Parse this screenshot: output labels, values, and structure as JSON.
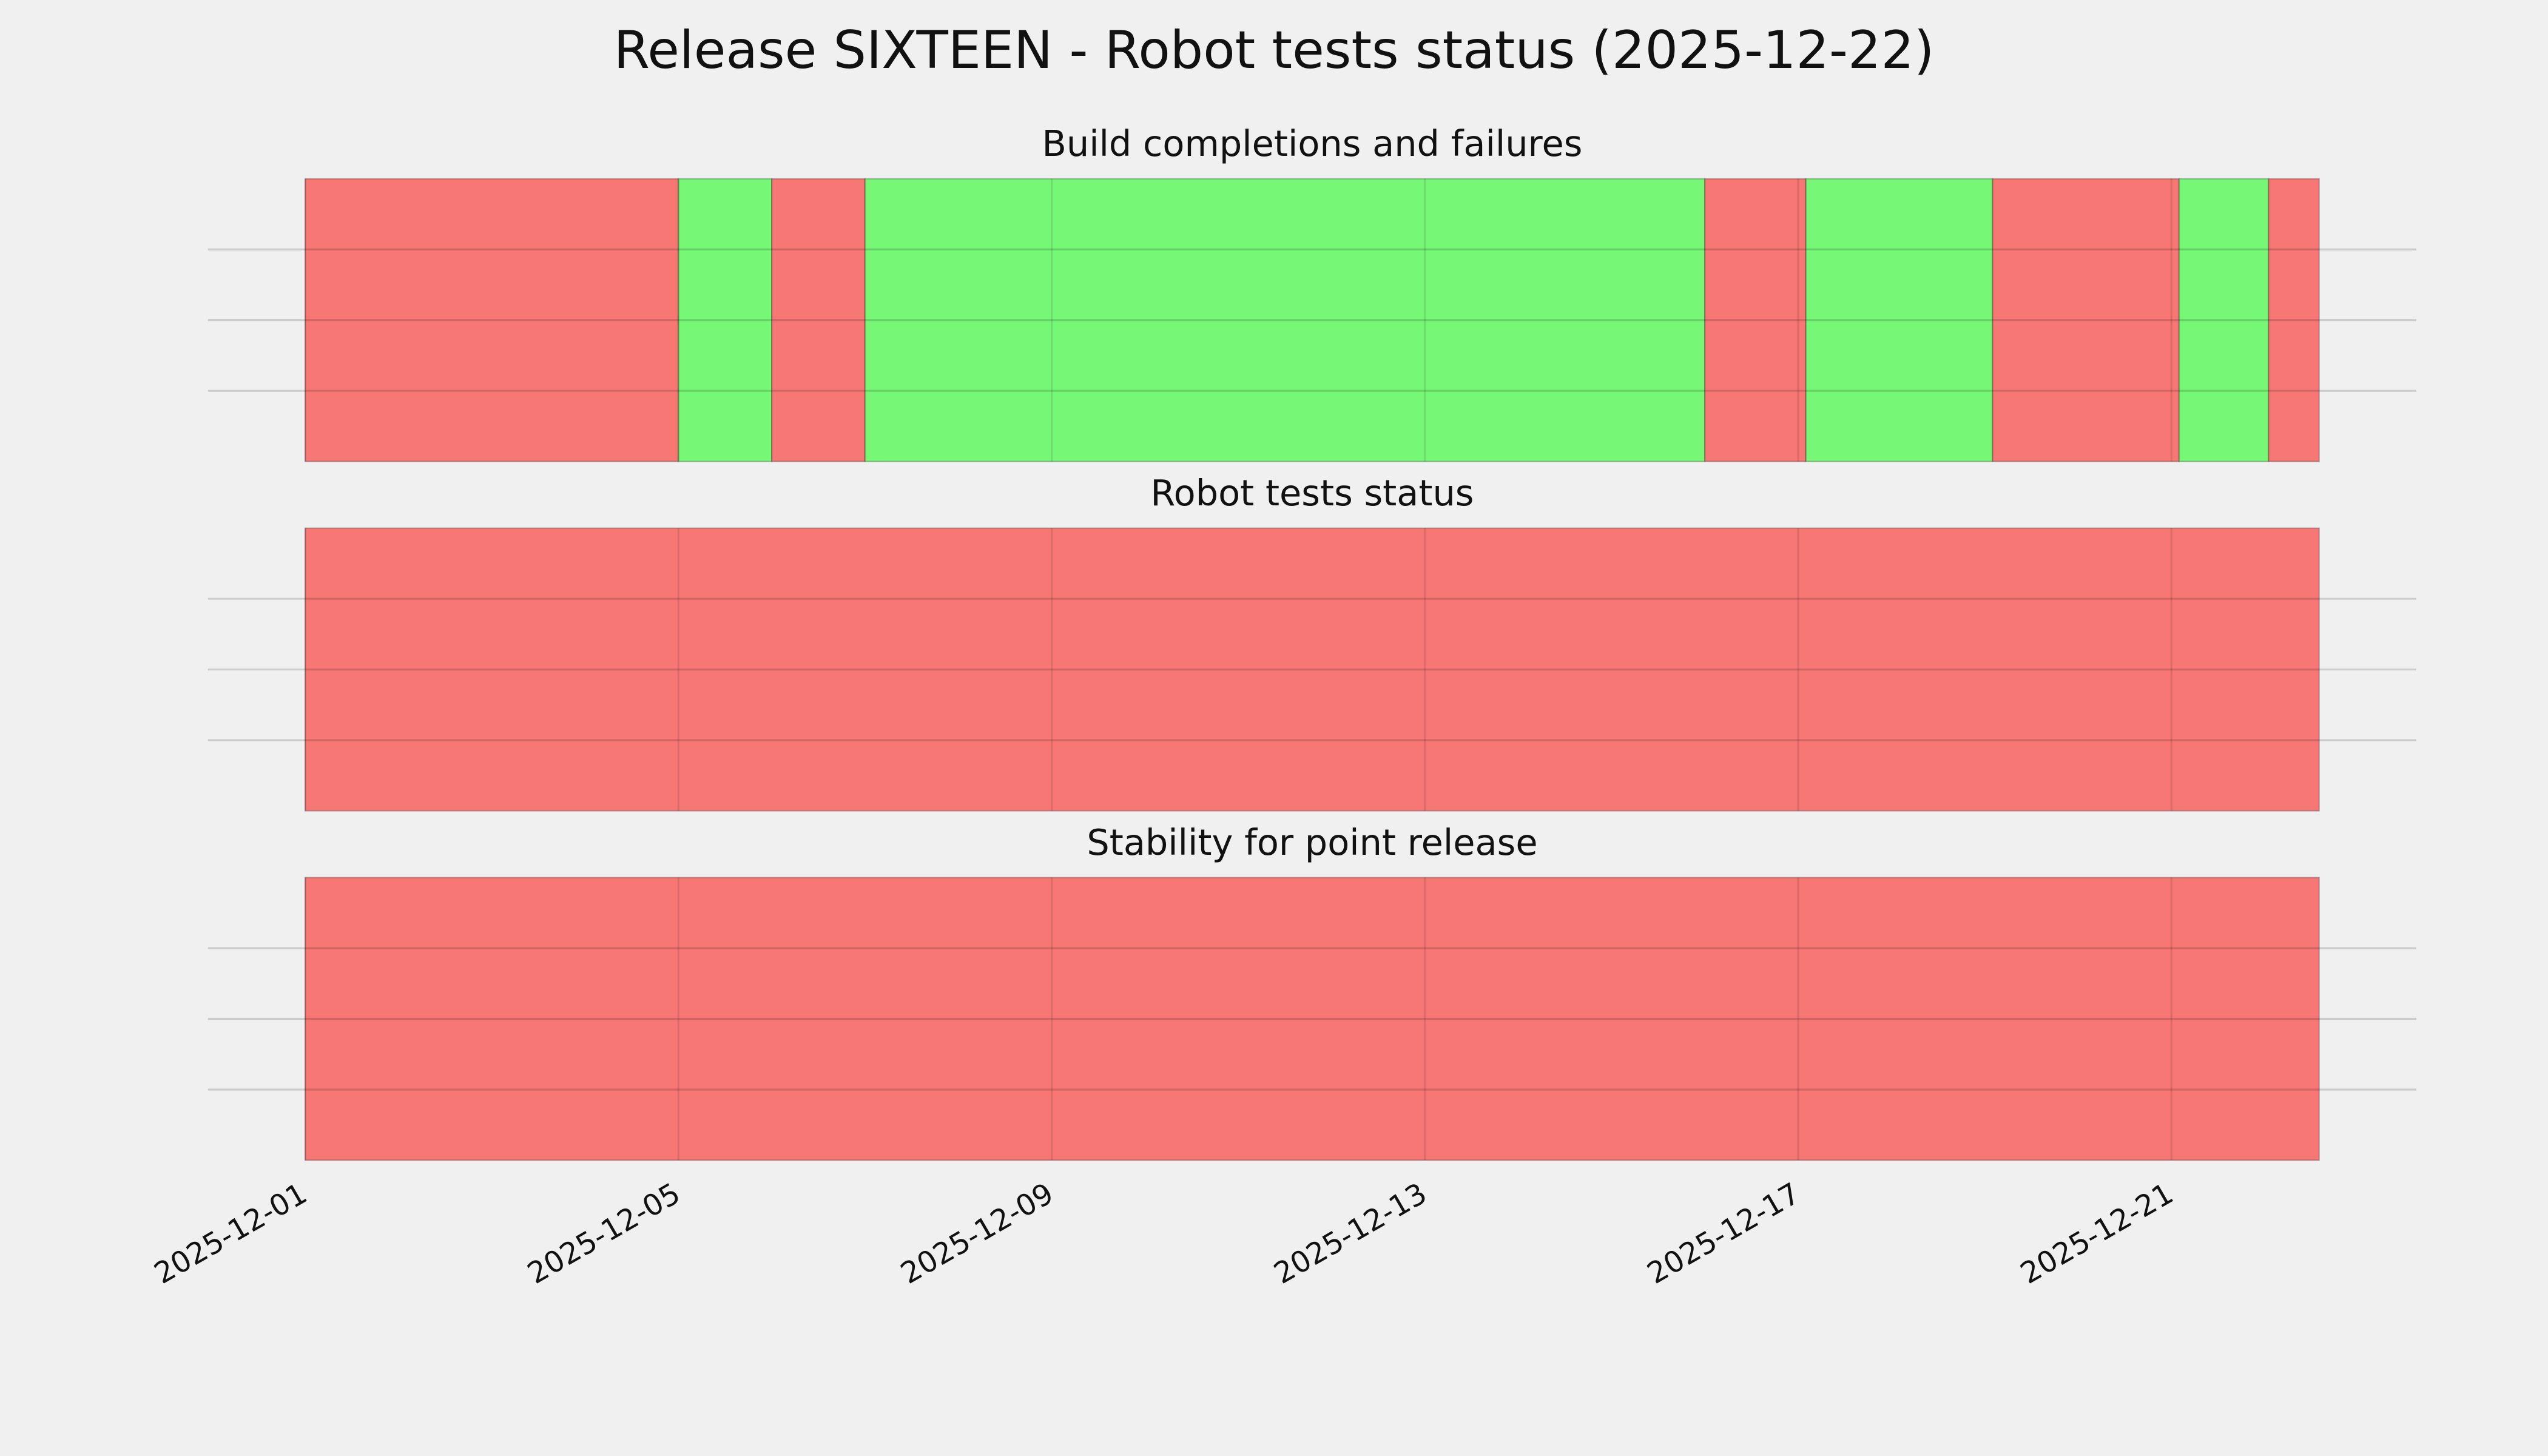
{
  "title": "Release SIXTEEN - Robot tests status (2025-12-22)",
  "chart_data": [
    {
      "type": "timeline",
      "title": "Build completions and failures",
      "x_start": [
        "2025-12-01T00:00",
        "2025-12-05T00:00",
        "2025-12-06T00:00",
        "2025-12-07T00:00",
        "2025-12-16T00:00",
        "2025-12-17T02:00",
        "2025-12-19T02:00",
        "2025-12-21T02:00",
        "2025-12-22T01:00"
      ],
      "x_end": [
        "2025-12-05T00:00",
        "2025-12-06T00:00",
        "2025-12-07T00:00",
        "2025-12-16T00:00",
        "2025-12-17T02:00",
        "2025-12-19T02:00",
        "2025-12-21T02:00",
        "2025-12-22T01:00",
        "2025-12-22T14:00"
      ],
      "colors": [
        "#f77775",
        "#76f776",
        "#f77775",
        "#76f776",
        "#f77775",
        "#76f776",
        "#f77775",
        "#76f776",
        "#f77775"
      ],
      "xlim": [
        "2025-11-29T23:00",
        "2025-12-23T15:00"
      ],
      "xticks": [
        "2025-12-01",
        "2025-12-05",
        "2025-12-09",
        "2025-12-13",
        "2025-12-17",
        "2025-12-21"
      ],
      "ylim": [
        0,
        1
      ],
      "yticks": [
        0.25,
        0.5,
        0.75
      ],
      "grid": true
    },
    {
      "type": "timeline",
      "title": "Robot tests status",
      "x_start": [
        "2025-12-01T00:00"
      ],
      "x_end": [
        "2025-12-22T14:00"
      ],
      "colors": [
        "#f77775"
      ],
      "xlim": [
        "2025-11-29T23:00",
        "2025-12-23T15:00"
      ],
      "xticks": [
        "2025-12-01",
        "2025-12-05",
        "2025-12-09",
        "2025-12-13",
        "2025-12-17",
        "2025-12-21"
      ],
      "ylim": [
        0,
        1
      ],
      "yticks": [
        0.25,
        0.5,
        0.75
      ],
      "grid": true
    },
    {
      "type": "timeline",
      "title": "Stability for point release",
      "x_start": [
        "2025-12-01T00:00"
      ],
      "x_end": [
        "2025-12-22T14:00"
      ],
      "colors": [
        "#f77775"
      ],
      "xlim": [
        "2025-11-29T23:00",
        "2025-12-23T15:00"
      ],
      "xticks": [
        "2025-12-01",
        "2025-12-05",
        "2025-12-09",
        "2025-12-13",
        "2025-12-17",
        "2025-12-21"
      ],
      "ylim": [
        0,
        1
      ],
      "yticks": [
        0.25,
        0.5,
        0.75
      ],
      "grid": true
    }
  ]
}
